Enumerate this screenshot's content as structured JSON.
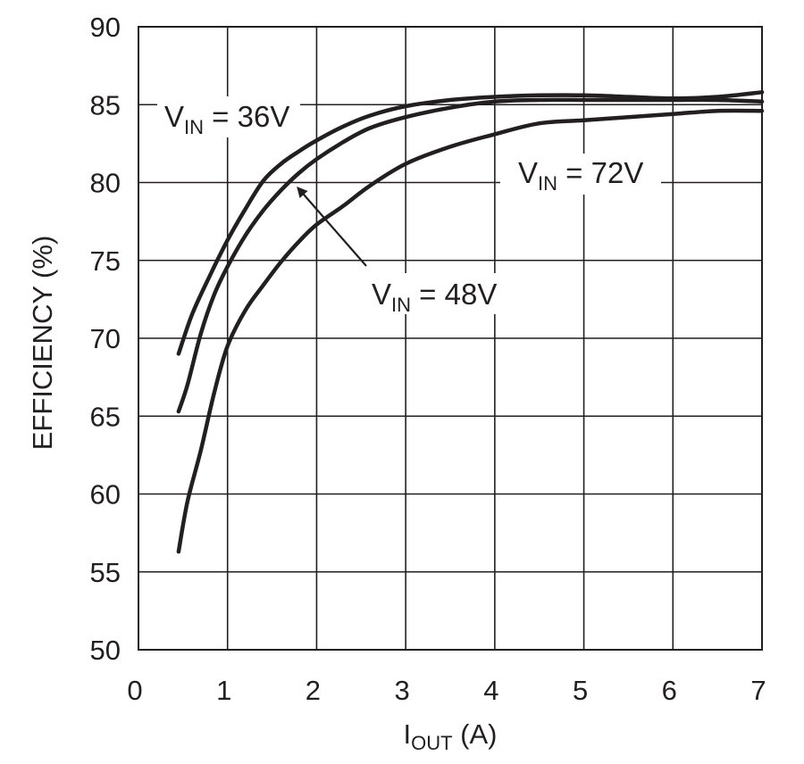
{
  "chart_data": {
    "type": "line",
    "title": "",
    "xlabel": {
      "main": "I",
      "sub": "OUT",
      "suffix": " (A)"
    },
    "ylabel": "EFFICIENCY (%)",
    "xlim": [
      0,
      7
    ],
    "ylim": [
      50,
      90
    ],
    "x_ticks": [
      "0",
      "1",
      "2",
      "3",
      "4",
      "5",
      "6",
      "7"
    ],
    "y_ticks": [
      "50",
      "55",
      "60",
      "65",
      "70",
      "75",
      "80",
      "85",
      "90"
    ],
    "grid": true,
    "series": [
      {
        "name": "VIN = 36V",
        "label": {
          "main": "V",
          "sub": "IN",
          "suffix": " = 36V"
        },
        "x": [
          0.45,
          0.6,
          0.8,
          1.0,
          1.2,
          1.4,
          1.6,
          1.8,
          2.0,
          2.3,
          2.6,
          3.0,
          3.5,
          4.0,
          4.5,
          5.0,
          5.5,
          6.0,
          6.5,
          7.0
        ],
        "y": [
          69.0,
          71.5,
          74.0,
          76.3,
          78.3,
          80.1,
          81.2,
          82.0,
          82.7,
          83.6,
          84.3,
          84.9,
          85.3,
          85.5,
          85.6,
          85.6,
          85.5,
          85.4,
          85.5,
          85.8
        ]
      },
      {
        "name": "VIN = 48V",
        "label": {
          "main": "V",
          "sub": "IN",
          "suffix": " = 48V"
        },
        "x": [
          0.45,
          0.55,
          0.7,
          0.85,
          1.0,
          1.2,
          1.4,
          1.6,
          1.8,
          2.0,
          2.3,
          2.6,
          3.0,
          3.5,
          4.0,
          4.5,
          5.0,
          5.5,
          6.0,
          6.5,
          7.0
        ],
        "y": [
          65.3,
          67.0,
          70.3,
          72.8,
          74.6,
          76.6,
          78.2,
          79.5,
          80.6,
          81.5,
          82.6,
          83.5,
          84.2,
          84.8,
          85.2,
          85.3,
          85.3,
          85.3,
          85.3,
          85.3,
          85.2
        ]
      },
      {
        "name": "VIN = 72V",
        "label": {
          "main": "V",
          "sub": "IN",
          "suffix": " = 72V"
        },
        "x": [
          0.45,
          0.55,
          0.7,
          0.85,
          1.0,
          1.2,
          1.4,
          1.6,
          1.8,
          2.0,
          2.3,
          2.6,
          3.0,
          3.5,
          4.0,
          4.5,
          5.0,
          5.5,
          6.0,
          6.5,
          7.0
        ],
        "y": [
          56.3,
          59.5,
          62.8,
          66.5,
          69.5,
          71.8,
          73.4,
          74.9,
          76.2,
          77.3,
          78.5,
          79.8,
          81.2,
          82.3,
          83.1,
          83.8,
          84.0,
          84.2,
          84.4,
          84.6,
          84.6
        ]
      }
    ],
    "annotations": [
      {
        "series": "VIN = 36V",
        "arrow": false
      },
      {
        "series": "VIN = 48V",
        "arrow": true,
        "arrow_target": [
          1.85,
          80.0
        ]
      },
      {
        "series": "VIN = 72V",
        "arrow": false
      }
    ]
  }
}
